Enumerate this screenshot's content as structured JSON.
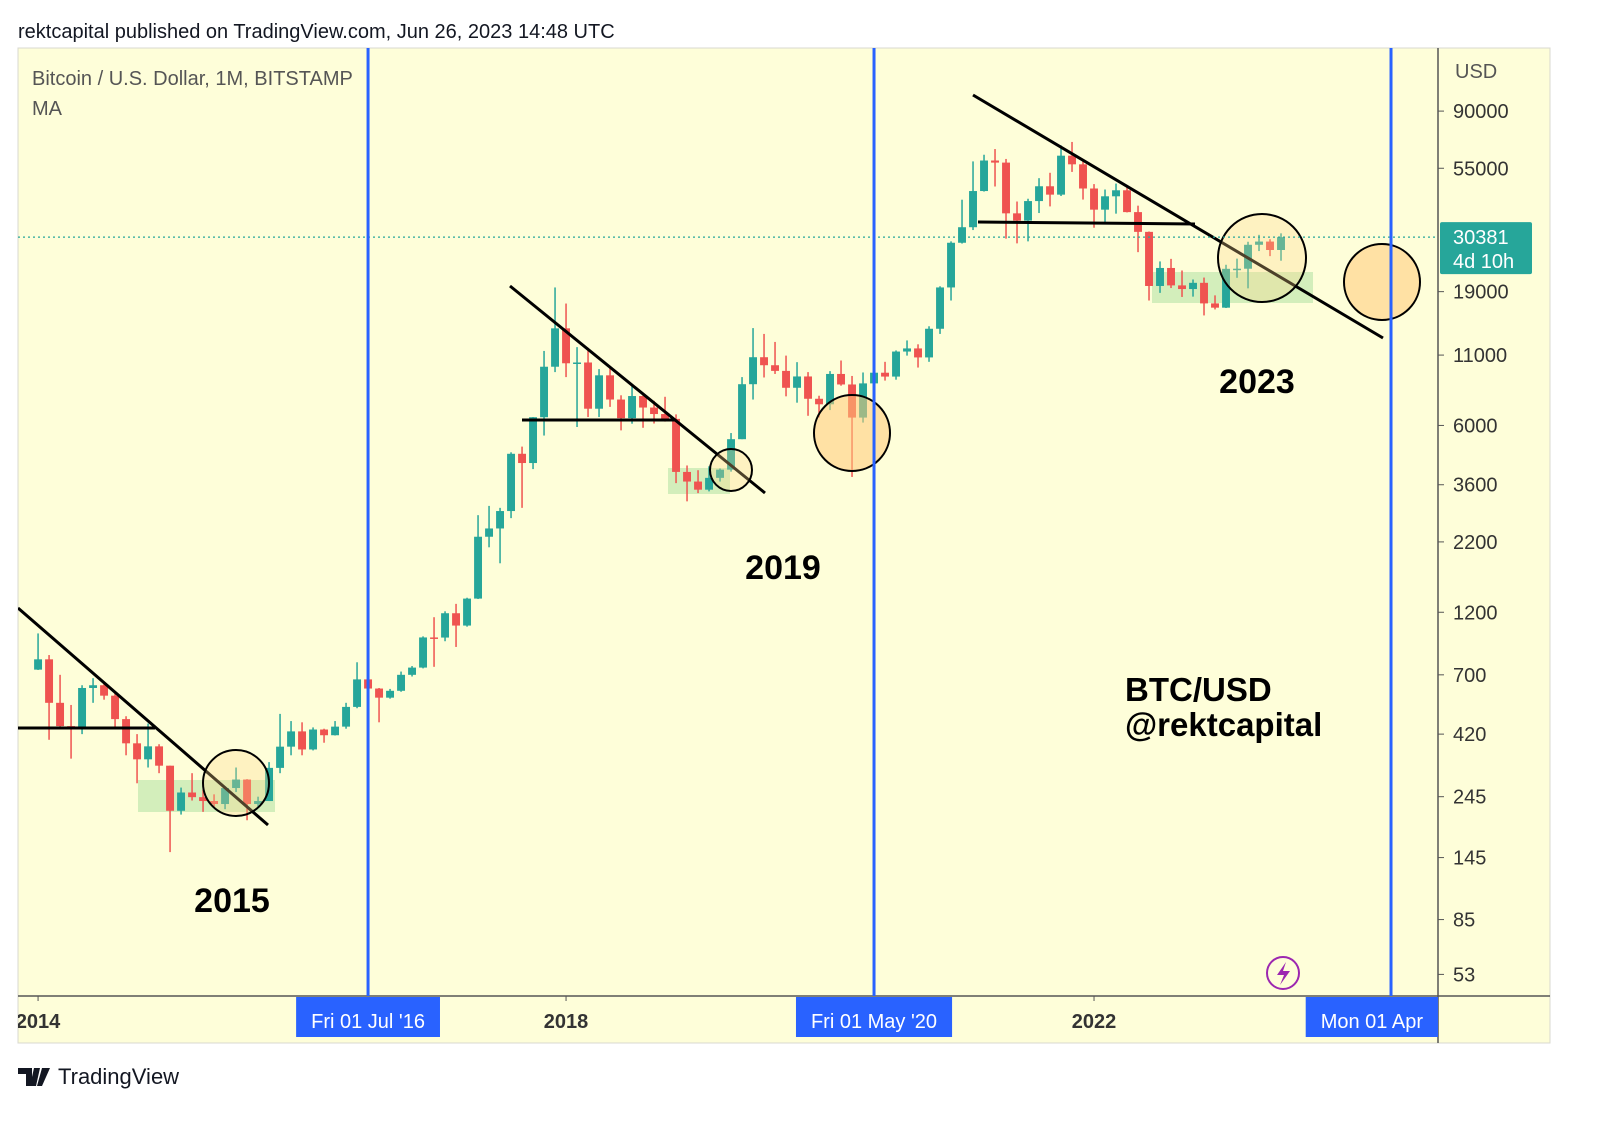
{
  "header": {
    "attribution": "rektcapital published on TradingView.com, Jun 26, 2023 14:48 UTC",
    "brand": "TradingView"
  },
  "chart_data": {
    "type": "candlestick",
    "symbol": "Bitcoin / U.S. Dollar, 1M, BITSTAMP",
    "indicator": "MA",
    "y_axis_label": "USD",
    "log_scale": true,
    "colors": {
      "up": "#26a69a",
      "down": "#ef5350",
      "marker": "#2962ff"
    },
    "x": [
      "2014-01",
      "2014-02",
      "2014-03",
      "2014-04",
      "2014-05",
      "2014-06",
      "2014-07",
      "2014-08",
      "2014-09",
      "2014-10",
      "2014-11",
      "2014-12",
      "2015-01",
      "2015-02",
      "2015-03",
      "2015-04",
      "2015-05",
      "2015-06",
      "2015-07",
      "2015-08",
      "2015-09",
      "2015-10",
      "2015-11",
      "2015-12",
      "2016-01",
      "2016-02",
      "2016-03",
      "2016-04",
      "2016-05",
      "2016-06",
      "2016-07",
      "2016-08",
      "2016-09",
      "2016-10",
      "2016-11",
      "2016-12",
      "2017-01",
      "2017-02",
      "2017-03",
      "2017-04",
      "2017-05",
      "2017-06",
      "2017-07",
      "2017-08",
      "2017-09",
      "2017-10",
      "2017-11",
      "2017-12",
      "2018-01",
      "2018-02",
      "2018-03",
      "2018-04",
      "2018-05",
      "2018-06",
      "2018-07",
      "2018-08",
      "2018-09",
      "2018-10",
      "2018-11",
      "2018-12",
      "2019-01",
      "2019-02",
      "2019-03",
      "2019-04",
      "2019-05",
      "2019-06",
      "2019-07",
      "2019-08",
      "2019-09",
      "2019-10",
      "2019-11",
      "2019-12",
      "2020-01",
      "2020-02",
      "2020-03",
      "2020-04",
      "2020-05",
      "2020-06",
      "2020-07",
      "2020-08",
      "2020-09",
      "2020-10",
      "2020-11",
      "2020-12",
      "2021-01",
      "2021-02",
      "2021-03",
      "2021-04",
      "2021-05",
      "2021-06",
      "2021-07",
      "2021-08",
      "2021-09",
      "2021-10",
      "2021-11",
      "2021-12",
      "2022-01",
      "2022-02",
      "2022-03",
      "2022-04",
      "2022-05",
      "2022-06",
      "2022-07",
      "2022-08",
      "2022-09",
      "2022-10",
      "2022-11",
      "2022-12",
      "2023-01",
      "2023-02",
      "2023-03",
      "2023-04",
      "2023-05",
      "2023-06"
    ],
    "open": [
      732,
      800,
      550,
      450,
      445,
      625,
      640,
      585,
      478,
      388,
      338,
      378,
      320,
      217,
      254,
      244,
      236,
      230,
      264,
      284,
      230,
      236,
      314,
      377,
      430,
      368,
      437,
      416,
      448,
      531,
      673,
      622,
      575,
      610,
      700,
      745,
      966,
      965,
      1190,
      1070,
      1350,
      2300,
      2470,
      2870,
      4700,
      4340,
      6440,
      9950,
      13850,
      10250,
      10320,
      6930,
      9240,
      7500,
      6390,
      7730,
      7000,
      6620,
      6350,
      4020,
      3700,
      3450,
      3820,
      4100,
      5330,
      8560,
      10800,
      10080,
      9600,
      8300,
      9150,
      7550,
      7200,
      9350,
      8540,
      6420,
      8620,
      9450,
      9140,
      11340,
      11650,
      10780,
      13800,
      19700,
      28950,
      33100,
      45200,
      58800,
      57750,
      37300,
      35040,
      41460,
      47100,
      43820,
      61300,
      56900,
      46200,
      38500,
      43200,
      45500,
      37700,
      31800,
      19950,
      23300,
      20050,
      19430,
      20500,
      17170,
      16550,
      23130,
      23150,
      28450,
      29250,
      27200
    ],
    "high": [
      1000,
      830,
      700,
      540,
      640,
      680,
      655,
      600,
      490,
      420,
      460,
      385,
      320,
      265,
      300,
      260,
      250,
      268,
      315,
      285,
      245,
      330,
      500,
      470,
      465,
      445,
      440,
      470,
      550,
      780,
      705,
      625,
      620,
      720,
      755,
      975,
      1150,
      1210,
      1290,
      1360,
      2770,
      3000,
      2950,
      4760,
      5000,
      6450,
      11400,
      19700,
      17150,
      11780,
      11700,
      9750,
      9990,
      7780,
      8500,
      7770,
      7420,
      7680,
      6600,
      4250,
      4080,
      4220,
      4140,
      5620,
      9100,
      13880,
      13200,
      12320,
      10950,
      10350,
      9500,
      7750,
      9580,
      10500,
      9190,
      9470,
      10070,
      10380,
      11450,
      12480,
      12070,
      14100,
      19900,
      29300,
      41950,
      58350,
      61800,
      64900,
      59600,
      41300,
      42300,
      50500,
      52900,
      67000,
      69000,
      59100,
      47990,
      45800,
      48200,
      47450,
      39850,
      31900,
      24650,
      25200,
      22800,
      21100,
      21450,
      18400,
      23950,
      25250,
      29200,
      31000,
      29850,
      31400
    ],
    "low": [
      730,
      400,
      440,
      340,
      420,
      550,
      565,
      440,
      350,
      275,
      315,
      300,
      152,
      210,
      237,
      215,
      225,
      220,
      255,
      200,
      225,
      236,
      300,
      350,
      350,
      365,
      390,
      415,
      440,
      525,
      610,
      465,
      570,
      605,
      690,
      740,
      750,
      935,
      890,
      1060,
      1345,
      2100,
      1830,
      2700,
      2950,
      4120,
      5500,
      9500,
      9100,
      5920,
      6450,
      6450,
      7040,
      5750,
      6090,
      5880,
      6100,
      6200,
      3650,
      3120,
      3350,
      3400,
      3700,
      4030,
      5330,
      7500,
      9070,
      9350,
      7710,
      7300,
      6520,
      6430,
      6850,
      8450,
      3850,
      6150,
      8100,
      8830,
      8900,
      10950,
      9880,
      10380,
      13200,
      17600,
      28750,
      32300,
      45000,
      47000,
      30000,
      28800,
      29300,
      37400,
      39600,
      43300,
      53300,
      42000,
      32950,
      34300,
      37200,
      37600,
      26700,
      17600,
      18800,
      19600,
      18150,
      18200,
      15480,
      16300,
      16500,
      21400,
      19550,
      26950,
      25800,
      24800
    ],
    "close": [
      800,
      550,
      450,
      445,
      625,
      640,
      585,
      478,
      388,
      338,
      378,
      320,
      217,
      254,
      244,
      236,
      230,
      264,
      284,
      230,
      236,
      314,
      377,
      430,
      368,
      437,
      416,
      448,
      531,
      673,
      622,
      575,
      610,
      700,
      745,
      966,
      965,
      1190,
      1070,
      1350,
      2300,
      2470,
      2870,
      4700,
      4340,
      6440,
      9950,
      13850,
      10250,
      10320,
      6930,
      9240,
      7500,
      6390,
      7730,
      7000,
      6620,
      6350,
      4020,
      3700,
      3450,
      3820,
      4100,
      5330,
      8560,
      10800,
      10080,
      9600,
      8300,
      9150,
      7550,
      7200,
      9350,
      8540,
      6420,
      8620,
      9450,
      9140,
      11340,
      11650,
      10780,
      13800,
      19700,
      28950,
      33100,
      45200,
      58800,
      57750,
      37300,
      35040,
      41460,
      47100,
      43820,
      61300,
      56900,
      46200,
      38500,
      43200,
      45500,
      37700,
      31800,
      19950,
      23300,
      20050,
      19430,
      20500,
      17170,
      16550,
      23130,
      23150,
      28450,
      29250,
      27200,
      30381
    ],
    "xlim": [
      2013.848,
      2024.606
    ],
    "xticks": [
      {
        "value": 2014,
        "label": "2014"
      },
      {
        "value": 2018,
        "label": "2018"
      },
      {
        "value": 2022,
        "label": "2022"
      }
    ],
    "ylim": [
      44,
      155000
    ],
    "yticks": [
      90000,
      55000,
      19000,
      11000,
      6000,
      3600,
      2200,
      1200,
      700,
      420,
      245,
      145,
      85,
      53
    ],
    "last_price": 30381,
    "countdown": "4d 10h",
    "markers": [
      {
        "value": 2016.5,
        "label": "Fri 01 Jul '16"
      },
      {
        "value": 2020.3333,
        "label": "Fri 01 May '20"
      },
      {
        "value": 2024.25,
        "label": "Mon 01 Apr"
      }
    ],
    "annotations": [
      "2015",
      "2019",
      "2023",
      "BTC/USD",
      "@rektcapital"
    ]
  }
}
